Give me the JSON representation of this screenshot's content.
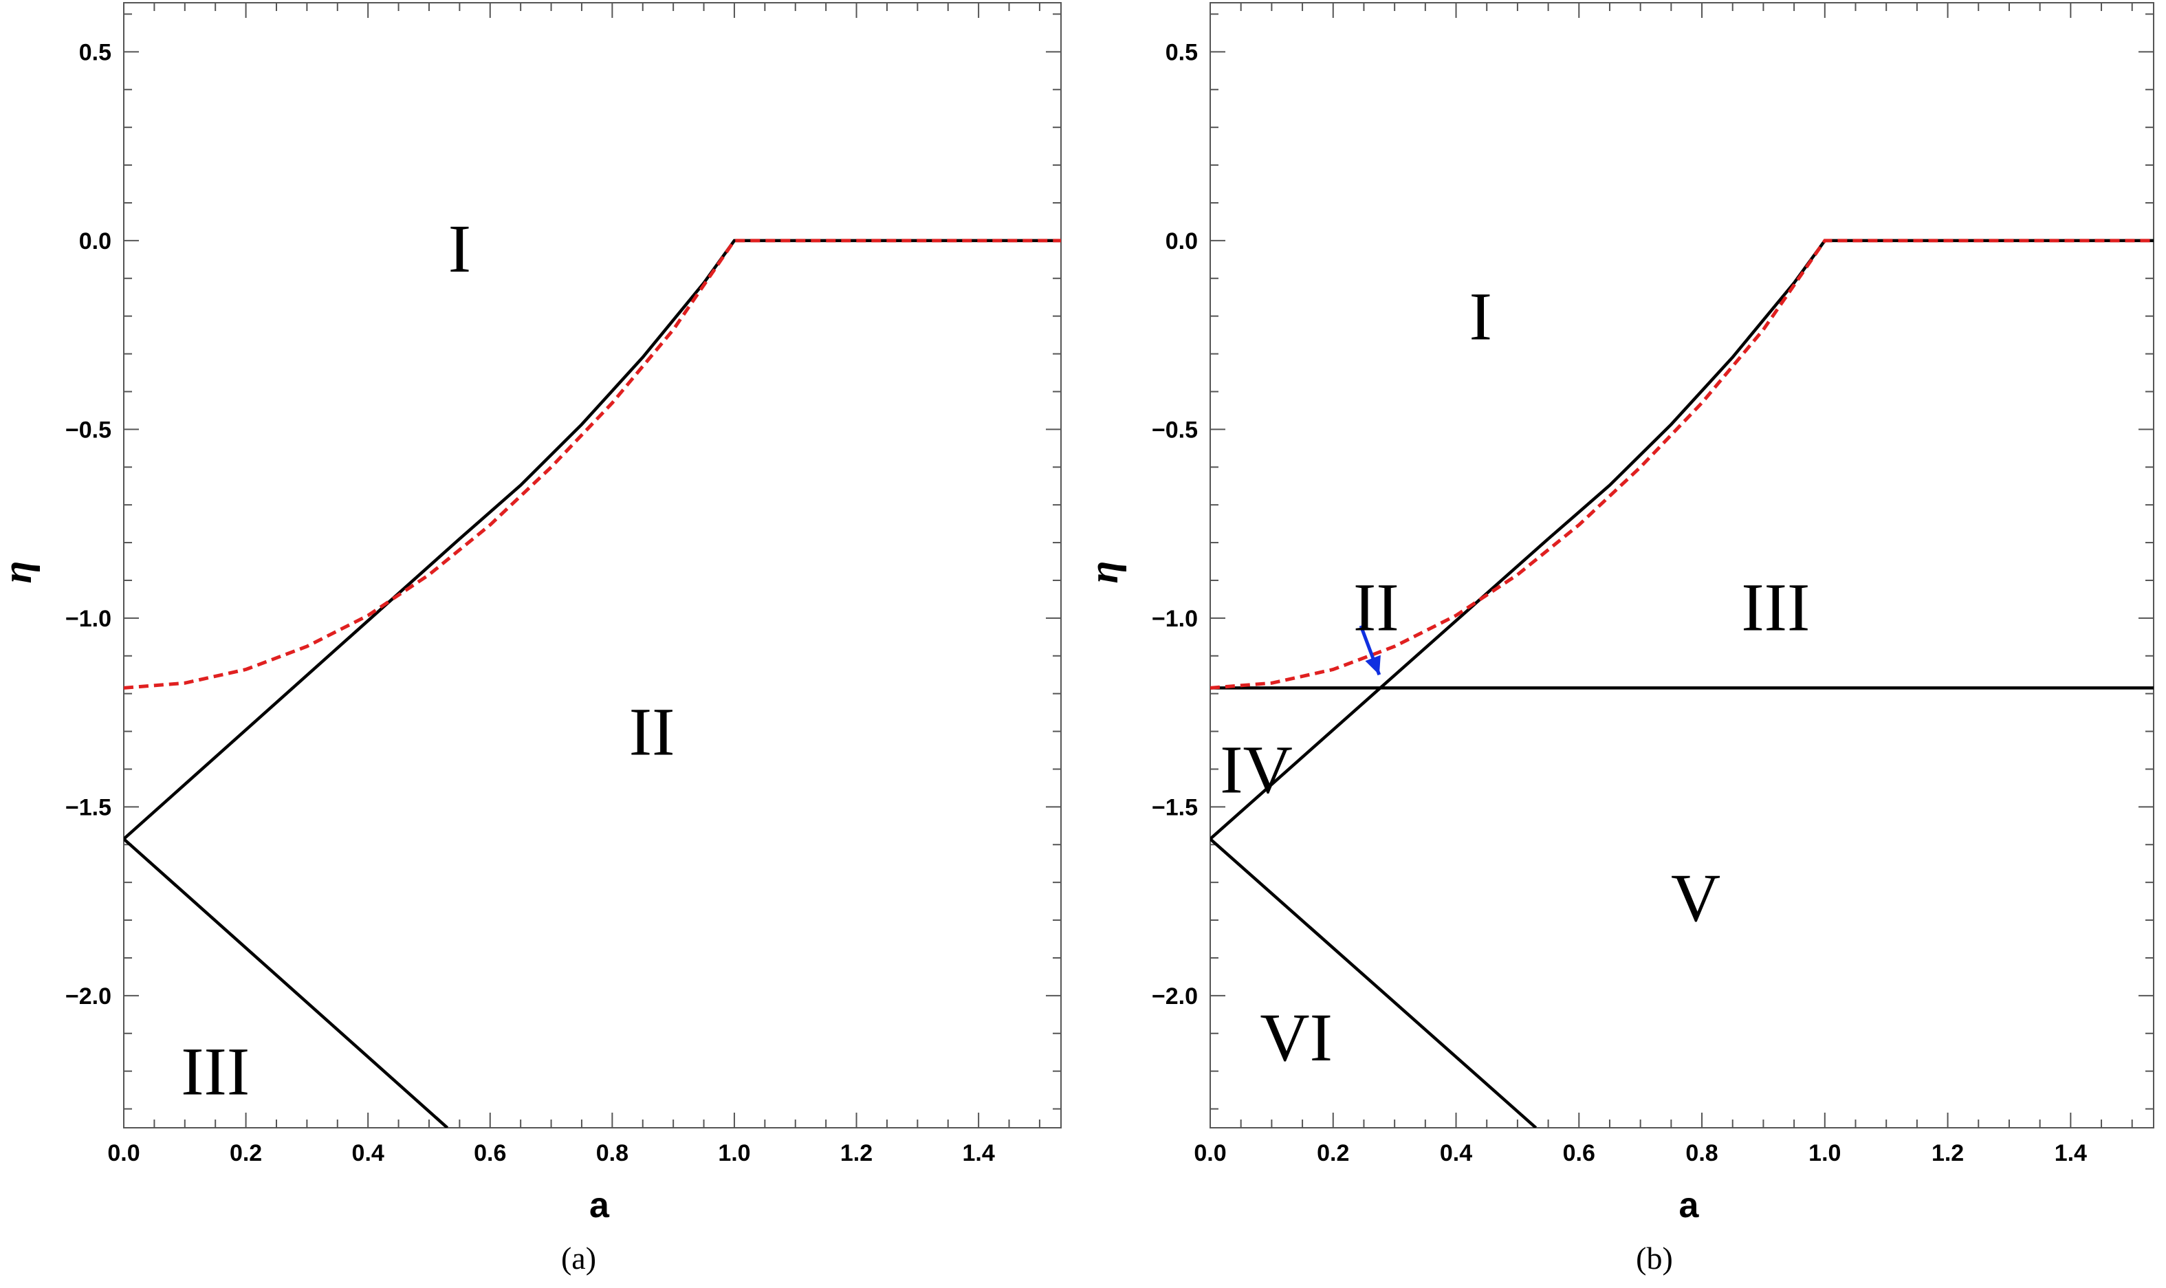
{
  "chart_data": [
    {
      "type": "line",
      "caption": "(a)",
      "xlabel": "a",
      "ylabel": "η",
      "xlim": [
        0,
        1.535
      ],
      "ylim": [
        -2.35,
        0.63
      ],
      "xticks": [
        "0.0",
        "0.2",
        "0.4",
        "0.6",
        "0.8",
        "1.0",
        "1.2",
        "1.4"
      ],
      "yticks": [
        "0.5",
        "0.0",
        "−0.5",
        "−1.0",
        "−1.5",
        "−2.0"
      ],
      "series": [
        {
          "style": "solid",
          "color": "#000000",
          "points": [
            [
              0,
              -1.585
            ],
            [
              0.55,
              -0.79
            ]
          ]
        },
        {
          "style": "solid",
          "color": "#000000",
          "points": [
            [
              0,
              -1.585
            ],
            [
              0.53,
              -2.35
            ]
          ]
        },
        {
          "style": "solid",
          "color": "#000000",
          "points": [
            [
              0.55,
              -0.79
            ],
            [
              0.65,
              -0.648
            ],
            [
              0.75,
              -0.487
            ],
            [
              0.85,
              -0.309
            ],
            [
              0.95,
              -0.112
            ],
            [
              1.0,
              0
            ],
            [
              1.535,
              0
            ]
          ]
        },
        {
          "style": "dashed",
          "color": "#e02020",
          "points": [
            [
              0,
              -1.185
            ],
            [
              0.1,
              -1.172
            ],
            [
              0.2,
              -1.136
            ],
            [
              0.3,
              -1.075
            ],
            [
              0.4,
              -0.993
            ],
            [
              0.5,
              -0.885
            ],
            [
              0.6,
              -0.753
            ],
            [
              0.7,
              -0.6
            ],
            [
              0.8,
              -0.43
            ],
            [
              0.9,
              -0.236
            ],
            [
              1.0,
              0
            ],
            [
              1.535,
              0
            ]
          ]
        }
      ],
      "regions": [
        {
          "label": "I",
          "x": 0.55,
          "y": -0.02
        },
        {
          "label": "II",
          "x": 0.865,
          "y": -1.3
        },
        {
          "label": "III",
          "x": 0.15,
          "y": -2.2
        }
      ]
    },
    {
      "type": "line",
      "caption": "(b)",
      "xlabel": "a",
      "ylabel": "η",
      "xlim": [
        0,
        1.535
      ],
      "ylim": [
        -2.35,
        0.63
      ],
      "xticks": [
        "0.0",
        "0.2",
        "0.4",
        "0.6",
        "0.8",
        "1.0",
        "1.2",
        "1.4"
      ],
      "yticks": [
        "0.5",
        "0.0",
        "−0.5",
        "−1.0",
        "−1.5",
        "−2.0"
      ],
      "series": [
        {
          "style": "solid",
          "color": "#000000",
          "points": [
            [
              0,
              -1.585
            ],
            [
              0.55,
              -0.79
            ]
          ]
        },
        {
          "style": "solid",
          "color": "#000000",
          "points": [
            [
              0,
              -1.585
            ],
            [
              0.53,
              -2.35
            ]
          ]
        },
        {
          "style": "solid",
          "color": "#000000",
          "points": [
            [
              0,
              -1.185
            ],
            [
              1.535,
              -1.185
            ]
          ]
        },
        {
          "style": "solid",
          "color": "#000000",
          "points": [
            [
              0.55,
              -0.79
            ],
            [
              0.65,
              -0.648
            ],
            [
              0.75,
              -0.487
            ],
            [
              0.85,
              -0.309
            ],
            [
              0.95,
              -0.112
            ],
            [
              1.0,
              0
            ],
            [
              1.535,
              0
            ]
          ]
        },
        {
          "style": "dashed",
          "color": "#e02020",
          "points": [
            [
              0,
              -1.185
            ],
            [
              0.1,
              -1.172
            ],
            [
              0.2,
              -1.136
            ],
            [
              0.3,
              -1.075
            ],
            [
              0.4,
              -0.993
            ],
            [
              0.5,
              -0.885
            ],
            [
              0.6,
              -0.753
            ],
            [
              0.7,
              -0.6
            ],
            [
              0.8,
              -0.43
            ],
            [
              0.9,
              -0.236
            ],
            [
              1.0,
              0
            ],
            [
              1.535,
              0
            ]
          ]
        }
      ],
      "regions": [
        {
          "label": "I",
          "x": 0.44,
          "y": -0.2
        },
        {
          "label": "II",
          "x": 0.27,
          "y": -0.97
        },
        {
          "label": "III",
          "x": 0.92,
          "y": -0.97
        },
        {
          "label": "IV",
          "x": 0.075,
          "y": -1.4
        },
        {
          "label": "V",
          "x": 0.79,
          "y": -1.74
        },
        {
          "label": "VI",
          "x": 0.14,
          "y": -2.11
        }
      ],
      "arrow": {
        "color": "#1030e0",
        "from": [
          0.245,
          -1.02
        ],
        "to": [
          0.275,
          -1.15
        ]
      }
    }
  ]
}
